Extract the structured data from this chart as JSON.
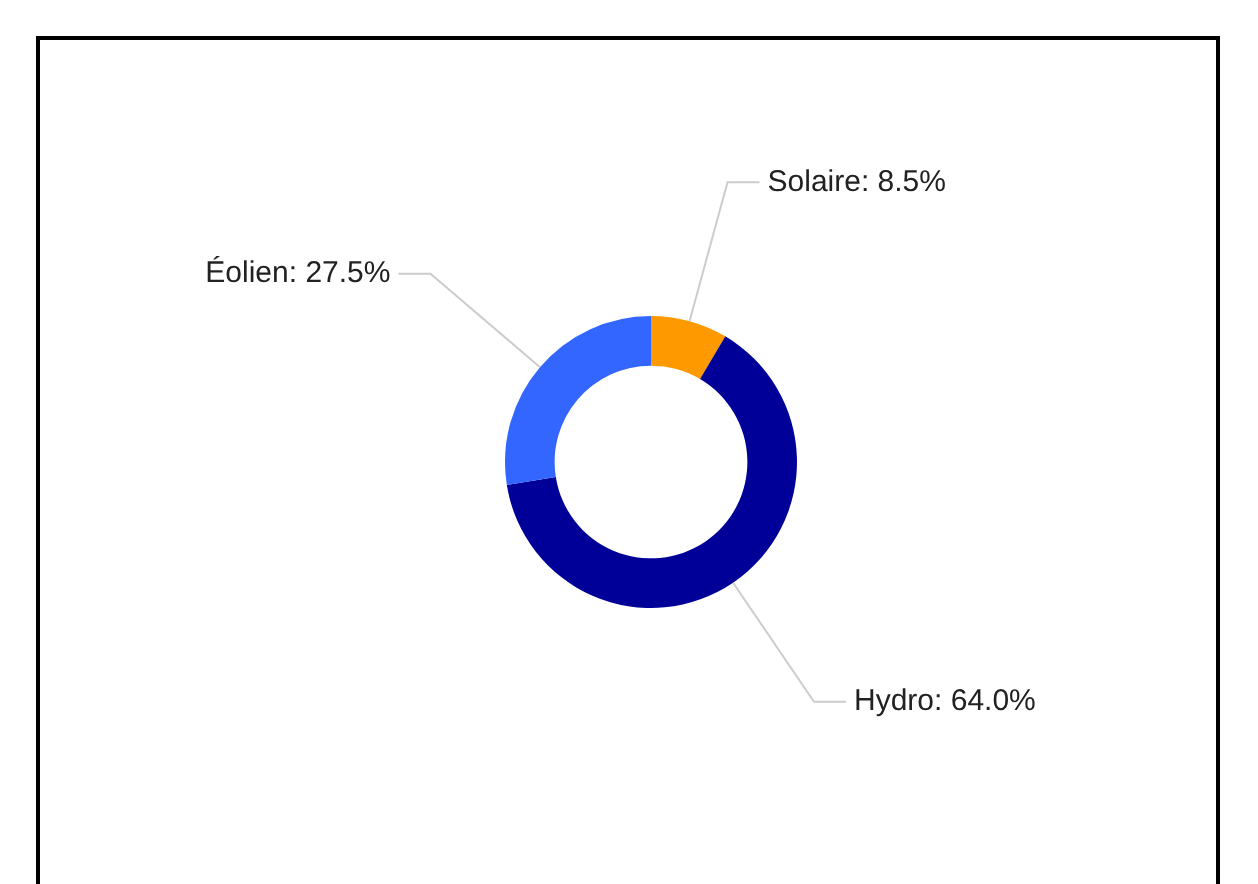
{
  "chart_data": {
    "type": "donut",
    "categories": [
      "Solaire",
      "Hydro",
      "Éolien"
    ],
    "values": [
      8.5,
      64.0,
      27.5
    ],
    "colors": [
      "#ff9900",
      "#000099",
      "#3366ff"
    ],
    "value_labels": [
      "8.5%",
      "64.0%",
      "27.5%"
    ],
    "legend": false
  }
}
